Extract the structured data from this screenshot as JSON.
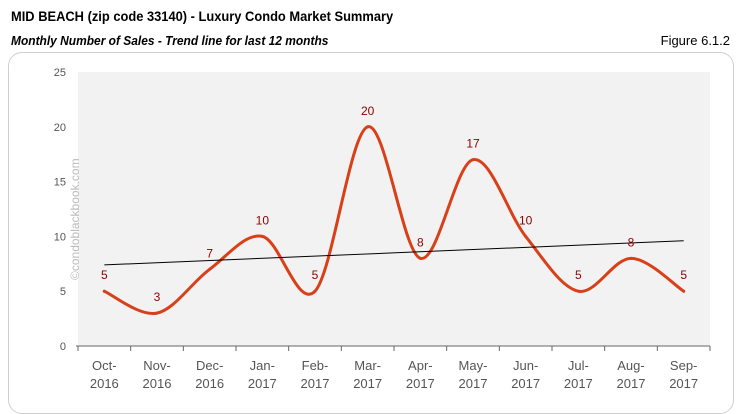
{
  "header": {
    "title": "MID BEACH (zip code 33140) - Luxury Condo Market Summary",
    "subtitle": "Monthly Number of Sales - Trend line for last 12 months",
    "figure": "Figure 6.1.2"
  },
  "watermark": "©condoblackbook.com",
  "chart_data": {
    "type": "line",
    "categories": [
      [
        "Oct-",
        "2016"
      ],
      [
        "Nov-",
        "2016"
      ],
      [
        "Dec-",
        "2016"
      ],
      [
        "Jan-",
        "2017"
      ],
      [
        "Feb-",
        "2017"
      ],
      [
        "Mar-",
        "2017"
      ],
      [
        "Apr-",
        "2017"
      ],
      [
        "May-",
        "2017"
      ],
      [
        "Jun-",
        "2017"
      ],
      [
        "Jul-",
        "2017"
      ],
      [
        "Aug-",
        "2017"
      ],
      [
        "Sep-",
        "2017"
      ]
    ],
    "values": [
      5,
      3,
      7,
      10,
      5,
      20,
      8,
      17,
      10,
      5,
      8,
      5
    ],
    "trendline": {
      "start": 7.4,
      "end": 9.6,
      "color": "#000000"
    },
    "ylim": [
      0,
      25
    ],
    "yticks": [
      0,
      5,
      10,
      15,
      20,
      25
    ],
    "grid": false,
    "line_color": "#d8401a",
    "label_color": "#8b0000",
    "plot_bg": "#f2f2f2",
    "smooth": true
  }
}
